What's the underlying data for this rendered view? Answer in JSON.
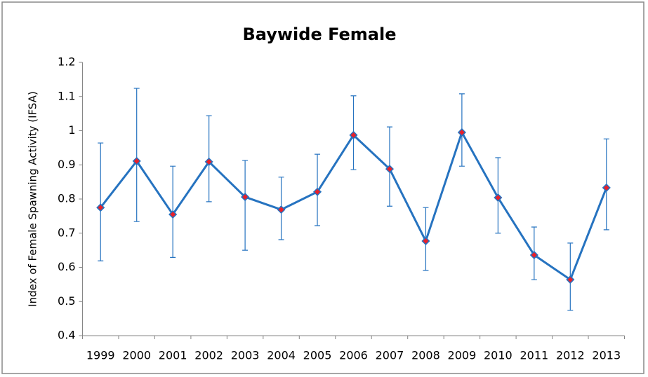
{
  "chart_data": {
    "type": "line",
    "title": "Baywide Female",
    "y_label": "Index of Female Spawning Activity (IFSA)",
    "categories": [
      "1999",
      "2000",
      "2001",
      "2002",
      "2003",
      "2004",
      "2005",
      "2006",
      "2007",
      "2008",
      "2009",
      "2010",
      "2011",
      "2012",
      "2013"
    ],
    "values": [
      0.775,
      0.911,
      0.755,
      0.909,
      0.806,
      0.769,
      0.821,
      0.987,
      0.888,
      0.677,
      0.995,
      0.804,
      0.636,
      0.564,
      0.833
    ],
    "error_plus": [
      0.189,
      0.213,
      0.141,
      0.135,
      0.107,
      0.095,
      0.11,
      0.115,
      0.123,
      0.098,
      0.113,
      0.117,
      0.082,
      0.107,
      0.143
    ],
    "error_minus": [
      0.156,
      0.177,
      0.126,
      0.117,
      0.156,
      0.088,
      0.099,
      0.101,
      0.109,
      0.086,
      0.099,
      0.104,
      0.072,
      0.09,
      0.123
    ],
    "color": "#2673c0",
    "marker_color": "#e8202a",
    "ylim": [
      0.4,
      1.2
    ],
    "yticks": [
      0.4,
      0.5,
      0.6,
      0.7,
      0.8,
      0.9,
      1,
      1.1,
      1.2
    ],
    "grid": false
  }
}
